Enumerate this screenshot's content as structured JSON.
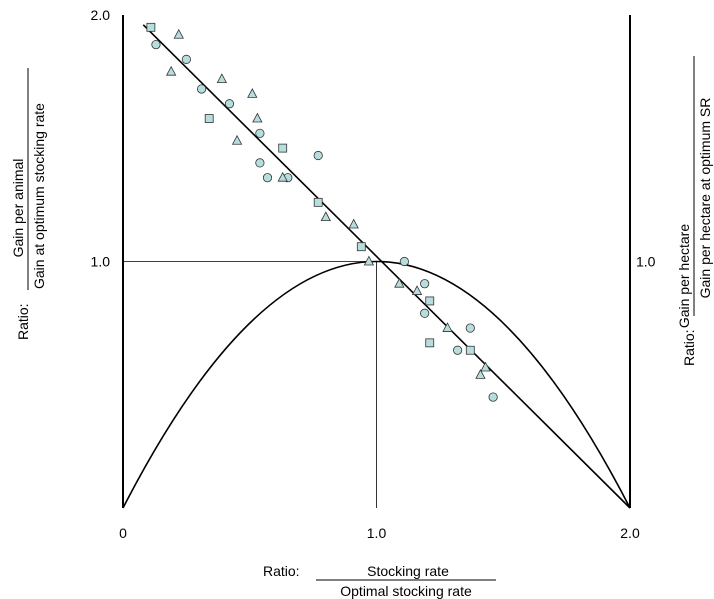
{
  "chart_data": {
    "type": "scatter",
    "xlabel": {
      "prefix": "Ratio:",
      "numerator": "Stocking rate",
      "denominator": "Optimal stocking rate"
    },
    "ylabel_left": {
      "prefix": "Ratio:",
      "numerator": "Gain per animal",
      "denominator": "Gain at optimum stocking rate"
    },
    "ylabel_right": {
      "prefix": "Ratio:",
      "numerator": "Gain per hectare",
      "denominator": "Gain per hectare at optimum SR"
    },
    "xlim": [
      0,
      2
    ],
    "ylim": [
      0,
      2
    ],
    "x_ticks": [
      {
        "value": 0,
        "label": "0"
      },
      {
        "value": 1,
        "label": "1.0"
      },
      {
        "value": 2,
        "label": "2.0"
      }
    ],
    "y_ticks_left": [
      {
        "value": 1,
        "label": "1.0"
      },
      {
        "value": 2,
        "label": "2.0"
      }
    ],
    "y_ticks_right": [
      {
        "value": 1,
        "label": "1.0"
      }
    ],
    "marker_color": "#b7dede",
    "lines": [
      {
        "kind": "gain-per-animal",
        "x": [
          0.08,
          2.0
        ],
        "y": [
          1.96,
          0.0
        ]
      },
      {
        "kind": "gain-per-hectare",
        "x": [
          0,
          0.25,
          0.5,
          0.75,
          1.0,
          1.25,
          1.5,
          1.75,
          2.0
        ],
        "y": [
          0,
          0.4375,
          0.75,
          0.9375,
          1.0,
          0.9375,
          0.75,
          0.4375,
          0
        ]
      }
    ],
    "reference_lines": [
      {
        "from": [
          0,
          1
        ],
        "to": [
          1,
          1
        ]
      },
      {
        "from": [
          1,
          0
        ],
        "to": [
          1,
          1
        ]
      }
    ],
    "series": [
      {
        "marker": "square",
        "points": [
          [
            0.11,
            1.95
          ],
          [
            0.34,
            1.58
          ],
          [
            0.63,
            1.46
          ],
          [
            0.77,
            1.24
          ],
          [
            0.94,
            1.06
          ],
          [
            1.21,
            0.84
          ],
          [
            1.21,
            0.67
          ],
          [
            1.37,
            0.64
          ]
        ]
      },
      {
        "marker": "circle",
        "points": [
          [
            0.13,
            1.88
          ],
          [
            0.25,
            1.82
          ],
          [
            0.31,
            1.7
          ],
          [
            0.42,
            1.64
          ],
          [
            0.54,
            1.52
          ],
          [
            0.54,
            1.4
          ],
          [
            0.57,
            1.34
          ],
          [
            0.65,
            1.34
          ],
          [
            0.77,
            1.43
          ],
          [
            1.11,
            1.0
          ],
          [
            1.19,
            0.91
          ],
          [
            1.19,
            0.79
          ],
          [
            1.32,
            0.64
          ],
          [
            1.37,
            0.73
          ],
          [
            1.46,
            0.45
          ]
        ]
      },
      {
        "marker": "triangle",
        "points": [
          [
            0.22,
            1.92
          ],
          [
            0.19,
            1.77
          ],
          [
            0.39,
            1.74
          ],
          [
            0.45,
            1.49
          ],
          [
            0.51,
            1.68
          ],
          [
            0.53,
            1.58
          ],
          [
            0.63,
            1.34
          ],
          [
            0.8,
            1.18
          ],
          [
            0.91,
            1.15
          ],
          [
            0.97,
            1.0
          ],
          [
            1.09,
            0.91
          ],
          [
            1.16,
            0.88
          ],
          [
            1.28,
            0.73
          ],
          [
            1.41,
            0.54
          ],
          [
            1.43,
            0.57
          ]
        ]
      }
    ]
  }
}
